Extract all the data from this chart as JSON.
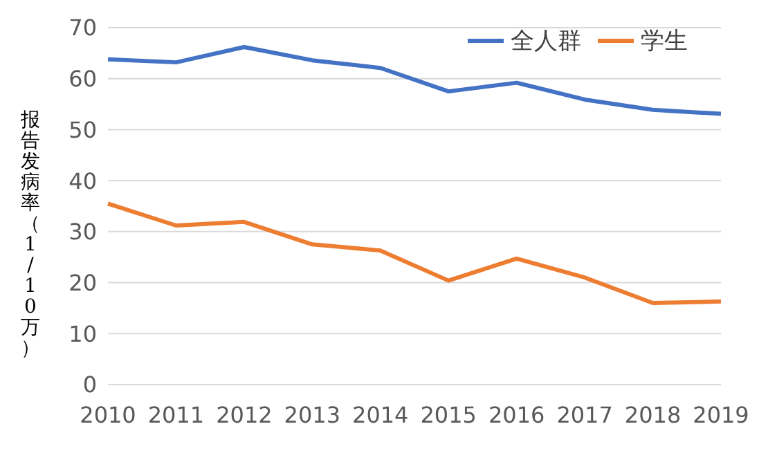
{
  "chart_data": {
    "type": "line",
    "ylabel": "报告发病率（1/10万）",
    "categories": [
      "2010",
      "2011",
      "2012",
      "2013",
      "2014",
      "2015",
      "2016",
      "2017",
      "2018",
      "2019"
    ],
    "series": [
      {
        "name": "全人群",
        "color": "#4472c4",
        "values": [
          63.8,
          63.2,
          66.2,
          63.6,
          62.1,
          57.5,
          59.2,
          55.9,
          53.9,
          53.1
        ]
      },
      {
        "name": "学生",
        "color": "#ed7d31",
        "values": [
          35.5,
          31.2,
          31.9,
          27.5,
          26.3,
          20.4,
          24.7,
          21.0,
          16.0,
          16.3
        ]
      }
    ],
    "ylim": [
      0,
      70
    ],
    "yticks": [
      0,
      10,
      20,
      30,
      40,
      50,
      60,
      70
    ],
    "grid": "y",
    "legend": "top right",
    "marker": "none",
    "line_style": "solid"
  }
}
